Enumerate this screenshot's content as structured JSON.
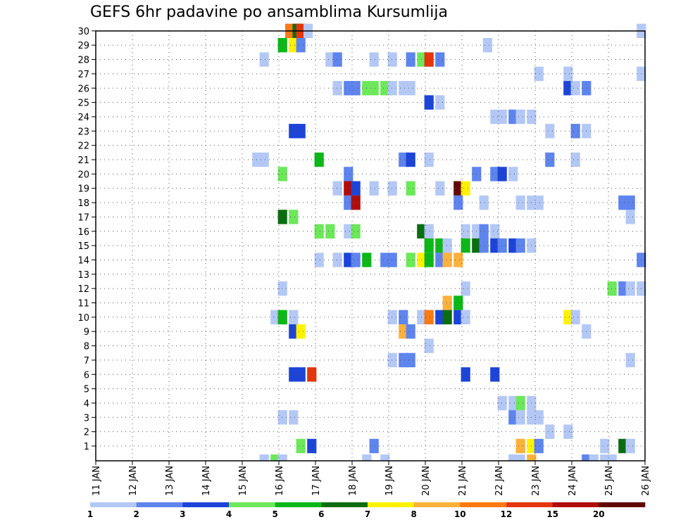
{
  "chart_data": {
    "type": "heatmap",
    "title": "GEFS 6hr padavine po ansamblima Kursumlija",
    "members": [
      "1",
      "2",
      "3",
      "4",
      "5",
      "6",
      "7",
      "8",
      "9",
      "10",
      "11",
      "12",
      "13",
      "14",
      "15",
      "16",
      "17",
      "18",
      "19",
      "20",
      "21",
      "22",
      "23",
      "24",
      "25",
      "26",
      "27",
      "28",
      "29",
      "30"
    ],
    "x_tick_labels": [
      "11 JAN",
      "12 JAN",
      "13 JAN",
      "14 JAN",
      "15 JAN",
      "16 JAN",
      "17 JAN",
      "18 JAN",
      "19 JAN",
      "20 JAN",
      "21 JAN",
      "22 JAN",
      "23 JAN",
      "24 JAN",
      "25 JAN",
      "26 JAN"
    ],
    "xlim_days": [
      11,
      26
    ],
    "ylim_members": [
      0,
      30
    ],
    "grid": true,
    "colorbar": {
      "labels": [
        "1",
        "2",
        "3",
        "4",
        "5",
        "6",
        "7",
        "8",
        "10",
        "12",
        "15",
        "20"
      ],
      "colors": [
        "#b4c8f6",
        "#5e84ee",
        "#1c44d8",
        "#6ce85a",
        "#0cb818",
        "#0a6e10",
        "#fff200",
        "#fcb13c",
        "#fc7a14",
        "#e3360c",
        "#b00c0c",
        "#600808"
      ]
    },
    "cells": [
      {
        "day": 16.3,
        "member": 30,
        "cls": 9
      },
      {
        "day": 16.5,
        "member": 30,
        "cls": 6
      },
      {
        "day": 16.6,
        "member": 30,
        "cls": 10
      },
      {
        "day": 16.8,
        "member": 30,
        "cls": 1
      },
      {
        "day": 25.9,
        "member": 30,
        "cls": 1
      },
      {
        "day": 16.1,
        "member": 29,
        "cls": 5
      },
      {
        "day": 16.4,
        "member": 29,
        "cls": 7
      },
      {
        "day": 16.6,
        "member": 29,
        "cls": 2
      },
      {
        "day": 21.7,
        "member": 29,
        "cls": 1
      },
      {
        "day": 15.6,
        "member": 28,
        "cls": 1
      },
      {
        "day": 17.4,
        "member": 28,
        "cls": 1
      },
      {
        "day": 17.6,
        "member": 28,
        "cls": 2
      },
      {
        "day": 18.6,
        "member": 28,
        "cls": 1
      },
      {
        "day": 19.1,
        "member": 28,
        "cls": 1
      },
      {
        "day": 19.6,
        "member": 28,
        "cls": 2
      },
      {
        "day": 19.9,
        "member": 28,
        "cls": 4
      },
      {
        "day": 20.1,
        "member": 28,
        "cls": 10
      },
      {
        "day": 20.4,
        "member": 28,
        "cls": 2
      },
      {
        "day": 23.1,
        "member": 27,
        "cls": 1
      },
      {
        "day": 23.9,
        "member": 27,
        "cls": 1
      },
      {
        "day": 25.9,
        "member": 27,
        "cls": 1
      },
      {
        "day": 17.6,
        "member": 26,
        "cls": 1
      },
      {
        "day": 17.9,
        "member": 26,
        "cls": 2
      },
      {
        "day": 18.1,
        "member": 26,
        "cls": 2
      },
      {
        "day": 18.4,
        "member": 26,
        "cls": 4
      },
      {
        "day": 18.6,
        "member": 26,
        "cls": 4
      },
      {
        "day": 18.9,
        "member": 26,
        "cls": 4
      },
      {
        "day": 19.1,
        "member": 26,
        "cls": 1
      },
      {
        "day": 19.4,
        "member": 26,
        "cls": 1
      },
      {
        "day": 19.6,
        "member": 26,
        "cls": 1
      },
      {
        "day": 23.9,
        "member": 26,
        "cls": 3
      },
      {
        "day": 24.1,
        "member": 26,
        "cls": 1
      },
      {
        "day": 24.4,
        "member": 26,
        "cls": 2
      },
      {
        "day": 20.1,
        "member": 25,
        "cls": 3
      },
      {
        "day": 20.4,
        "member": 25,
        "cls": 1
      },
      {
        "day": 21.9,
        "member": 24,
        "cls": 1
      },
      {
        "day": 22.1,
        "member": 24,
        "cls": 1
      },
      {
        "day": 22.4,
        "member": 24,
        "cls": 2
      },
      {
        "day": 22.6,
        "member": 24,
        "cls": 1
      },
      {
        "day": 22.9,
        "member": 24,
        "cls": 1
      },
      {
        "day": 16.4,
        "member": 23,
        "cls": 3
      },
      {
        "day": 16.6,
        "member": 23,
        "cls": 3
      },
      {
        "day": 23.4,
        "member": 23,
        "cls": 1
      },
      {
        "day": 24.1,
        "member": 23,
        "cls": 2
      },
      {
        "day": 24.4,
        "member": 23,
        "cls": 1
      },
      {
        "day": 15.4,
        "member": 21,
        "cls": 1
      },
      {
        "day": 15.6,
        "member": 21,
        "cls": 1
      },
      {
        "day": 17.1,
        "member": 21,
        "cls": 5
      },
      {
        "day": 19.4,
        "member": 21,
        "cls": 2
      },
      {
        "day": 19.6,
        "member": 21,
        "cls": 3
      },
      {
        "day": 20.1,
        "member": 21,
        "cls": 1
      },
      {
        "day": 23.4,
        "member": 21,
        "cls": 2
      },
      {
        "day": 24.1,
        "member": 21,
        "cls": 1
      },
      {
        "day": 16.1,
        "member": 20,
        "cls": 4
      },
      {
        "day": 17.9,
        "member": 20,
        "cls": 2
      },
      {
        "day": 21.4,
        "member": 20,
        "cls": 2
      },
      {
        "day": 21.9,
        "member": 20,
        "cls": 2
      },
      {
        "day": 22.1,
        "member": 20,
        "cls": 3
      },
      {
        "day": 22.4,
        "member": 20,
        "cls": 1
      },
      {
        "day": 17.6,
        "member": 19,
        "cls": 1
      },
      {
        "day": 17.9,
        "member": 19,
        "cls": 11
      },
      {
        "day": 18.1,
        "member": 19,
        "cls": 3
      },
      {
        "day": 18.6,
        "member": 19,
        "cls": 1
      },
      {
        "day": 19.1,
        "member": 19,
        "cls": 1
      },
      {
        "day": 19.6,
        "member": 19,
        "cls": 4
      },
      {
        "day": 20.4,
        "member": 19,
        "cls": 1
      },
      {
        "day": 20.9,
        "member": 19,
        "cls": 12
      },
      {
        "day": 21.1,
        "member": 19,
        "cls": 7
      },
      {
        "day": 17.9,
        "member": 18,
        "cls": 2
      },
      {
        "day": 18.1,
        "member": 18,
        "cls": 11
      },
      {
        "day": 20.9,
        "member": 18,
        "cls": 2
      },
      {
        "day": 21.6,
        "member": 18,
        "cls": 1
      },
      {
        "day": 22.6,
        "member": 18,
        "cls": 1
      },
      {
        "day": 22.9,
        "member": 18,
        "cls": 1
      },
      {
        "day": 23.1,
        "member": 18,
        "cls": 1
      },
      {
        "day": 25.4,
        "member": 18,
        "cls": 2
      },
      {
        "day": 25.6,
        "member": 18,
        "cls": 2
      },
      {
        "day": 16.1,
        "member": 17,
        "cls": 6
      },
      {
        "day": 16.4,
        "member": 17,
        "cls": 4
      },
      {
        "day": 25.6,
        "member": 17,
        "cls": 1
      },
      {
        "day": 17.1,
        "member": 16,
        "cls": 4
      },
      {
        "day": 17.4,
        "member": 16,
        "cls": 4
      },
      {
        "day": 17.9,
        "member": 16,
        "cls": 1
      },
      {
        "day": 18.1,
        "member": 16,
        "cls": 4
      },
      {
        "day": 19.9,
        "member": 16,
        "cls": 6
      },
      {
        "day": 20.1,
        "member": 16,
        "cls": 1
      },
      {
        "day": 21.1,
        "member": 16,
        "cls": 1
      },
      {
        "day": 21.4,
        "member": 16,
        "cls": 1
      },
      {
        "day": 21.6,
        "member": 16,
        "cls": 2
      },
      {
        "day": 21.9,
        "member": 16,
        "cls": 1
      },
      {
        "day": 20.1,
        "member": 15,
        "cls": 5
      },
      {
        "day": 20.4,
        "member": 15,
        "cls": 5
      },
      {
        "day": 20.6,
        "member": 15,
        "cls": 1
      },
      {
        "day": 21.1,
        "member": 15,
        "cls": 5
      },
      {
        "day": 21.4,
        "member": 15,
        "cls": 6
      },
      {
        "day": 21.6,
        "member": 15,
        "cls": 2
      },
      {
        "day": 21.9,
        "member": 15,
        "cls": 3
      },
      {
        "day": 22.1,
        "member": 15,
        "cls": 2
      },
      {
        "day": 22.4,
        "member": 15,
        "cls": 3
      },
      {
        "day": 22.6,
        "member": 15,
        "cls": 2
      },
      {
        "day": 22.9,
        "member": 15,
        "cls": 1
      },
      {
        "day": 17.1,
        "member": 14,
        "cls": 1
      },
      {
        "day": 17.6,
        "member": 14,
        "cls": 1
      },
      {
        "day": 17.9,
        "member": 14,
        "cls": 3
      },
      {
        "day": 18.1,
        "member": 14,
        "cls": 2
      },
      {
        "day": 18.4,
        "member": 14,
        "cls": 5
      },
      {
        "day": 18.9,
        "member": 14,
        "cls": 2
      },
      {
        "day": 19.1,
        "member": 14,
        "cls": 2
      },
      {
        "day": 19.6,
        "member": 14,
        "cls": 4
      },
      {
        "day": 19.9,
        "member": 14,
        "cls": 7
      },
      {
        "day": 20.1,
        "member": 14,
        "cls": 5
      },
      {
        "day": 20.4,
        "member": 14,
        "cls": 2
      },
      {
        "day": 20.6,
        "member": 14,
        "cls": 8
      },
      {
        "day": 20.9,
        "member": 14,
        "cls": 8
      },
      {
        "day": 25.9,
        "member": 14,
        "cls": 2
      },
      {
        "day": 16.1,
        "member": 12,
        "cls": 1
      },
      {
        "day": 21.1,
        "member": 12,
        "cls": 1
      },
      {
        "day": 25.1,
        "member": 12,
        "cls": 4
      },
      {
        "day": 25.4,
        "member": 12,
        "cls": 2
      },
      {
        "day": 25.6,
        "member": 12,
        "cls": 1
      },
      {
        "day": 25.9,
        "member": 12,
        "cls": 1
      },
      {
        "day": 20.6,
        "member": 11,
        "cls": 8
      },
      {
        "day": 20.9,
        "member": 11,
        "cls": 5
      },
      {
        "day": 15.9,
        "member": 10,
        "cls": 1
      },
      {
        "day": 16.1,
        "member": 10,
        "cls": 5
      },
      {
        "day": 16.4,
        "member": 10,
        "cls": 1
      },
      {
        "day": 19.1,
        "member": 10,
        "cls": 1
      },
      {
        "day": 19.4,
        "member": 10,
        "cls": 2
      },
      {
        "day": 19.9,
        "member": 10,
        "cls": 1
      },
      {
        "day": 20.1,
        "member": 10,
        "cls": 9
      },
      {
        "day": 20.4,
        "member": 10,
        "cls": 3
      },
      {
        "day": 20.6,
        "member": 10,
        "cls": 6
      },
      {
        "day": 20.9,
        "member": 10,
        "cls": 3
      },
      {
        "day": 21.1,
        "member": 10,
        "cls": 1
      },
      {
        "day": 23.9,
        "member": 10,
        "cls": 7
      },
      {
        "day": 24.1,
        "member": 10,
        "cls": 1
      },
      {
        "day": 16.4,
        "member": 9,
        "cls": 3
      },
      {
        "day": 16.6,
        "member": 9,
        "cls": 7
      },
      {
        "day": 19.4,
        "member": 9,
        "cls": 8
      },
      {
        "day": 19.6,
        "member": 9,
        "cls": 2
      },
      {
        "day": 24.4,
        "member": 9,
        "cls": 1
      },
      {
        "day": 20.1,
        "member": 8,
        "cls": 1
      },
      {
        "day": 19.1,
        "member": 7,
        "cls": 1
      },
      {
        "day": 19.4,
        "member": 7,
        "cls": 2
      },
      {
        "day": 19.6,
        "member": 7,
        "cls": 2
      },
      {
        "day": 25.6,
        "member": 7,
        "cls": 1
      },
      {
        "day": 16.4,
        "member": 6,
        "cls": 3
      },
      {
        "day": 16.6,
        "member": 6,
        "cls": 3
      },
      {
        "day": 16.9,
        "member": 6,
        "cls": 10
      },
      {
        "day": 21.1,
        "member": 6,
        "cls": 3
      },
      {
        "day": 21.9,
        "member": 6,
        "cls": 3
      },
      {
        "day": 22.1,
        "member": 4,
        "cls": 1
      },
      {
        "day": 22.4,
        "member": 4,
        "cls": 1
      },
      {
        "day": 22.6,
        "member": 4,
        "cls": 4
      },
      {
        "day": 22.9,
        "member": 4,
        "cls": 1
      },
      {
        "day": 16.1,
        "member": 3,
        "cls": 1
      },
      {
        "day": 16.4,
        "member": 3,
        "cls": 1
      },
      {
        "day": 22.4,
        "member": 3,
        "cls": 2
      },
      {
        "day": 22.6,
        "member": 3,
        "cls": 1
      },
      {
        "day": 22.9,
        "member": 3,
        "cls": 1
      },
      {
        "day": 23.1,
        "member": 3,
        "cls": 1
      },
      {
        "day": 23.4,
        "member": 2,
        "cls": 1
      },
      {
        "day": 23.9,
        "member": 2,
        "cls": 1
      },
      {
        "day": 16.6,
        "member": 1,
        "cls": 4
      },
      {
        "day": 16.9,
        "member": 1,
        "cls": 3
      },
      {
        "day": 18.6,
        "member": 1,
        "cls": 2
      },
      {
        "day": 22.6,
        "member": 1,
        "cls": 8
      },
      {
        "day": 22.9,
        "member": 1,
        "cls": 7
      },
      {
        "day": 23.1,
        "member": 1,
        "cls": 2
      },
      {
        "day": 24.9,
        "member": 1,
        "cls": 1
      },
      {
        "day": 25.4,
        "member": 1,
        "cls": 6
      },
      {
        "day": 25.6,
        "member": 1,
        "cls": 1
      },
      {
        "day": 15.6,
        "member": 0,
        "cls": 1
      },
      {
        "day": 15.9,
        "member": 0,
        "cls": 4
      },
      {
        "day": 16.1,
        "member": 0,
        "cls": 1
      },
      {
        "day": 18.4,
        "member": 0,
        "cls": 1
      },
      {
        "day": 18.9,
        "member": 0,
        "cls": 1
      },
      {
        "day": 22.4,
        "member": 0,
        "cls": 1
      },
      {
        "day": 22.6,
        "member": 0,
        "cls": 1
      },
      {
        "day": 22.9,
        "member": 0,
        "cls": 8
      },
      {
        "day": 24.4,
        "member": 0,
        "cls": 2
      },
      {
        "day": 24.6,
        "member": 0,
        "cls": 1
      },
      {
        "day": 24.9,
        "member": 0,
        "cls": 1
      },
      {
        "day": 25.1,
        "member": 0,
        "cls": 1
      }
    ]
  }
}
